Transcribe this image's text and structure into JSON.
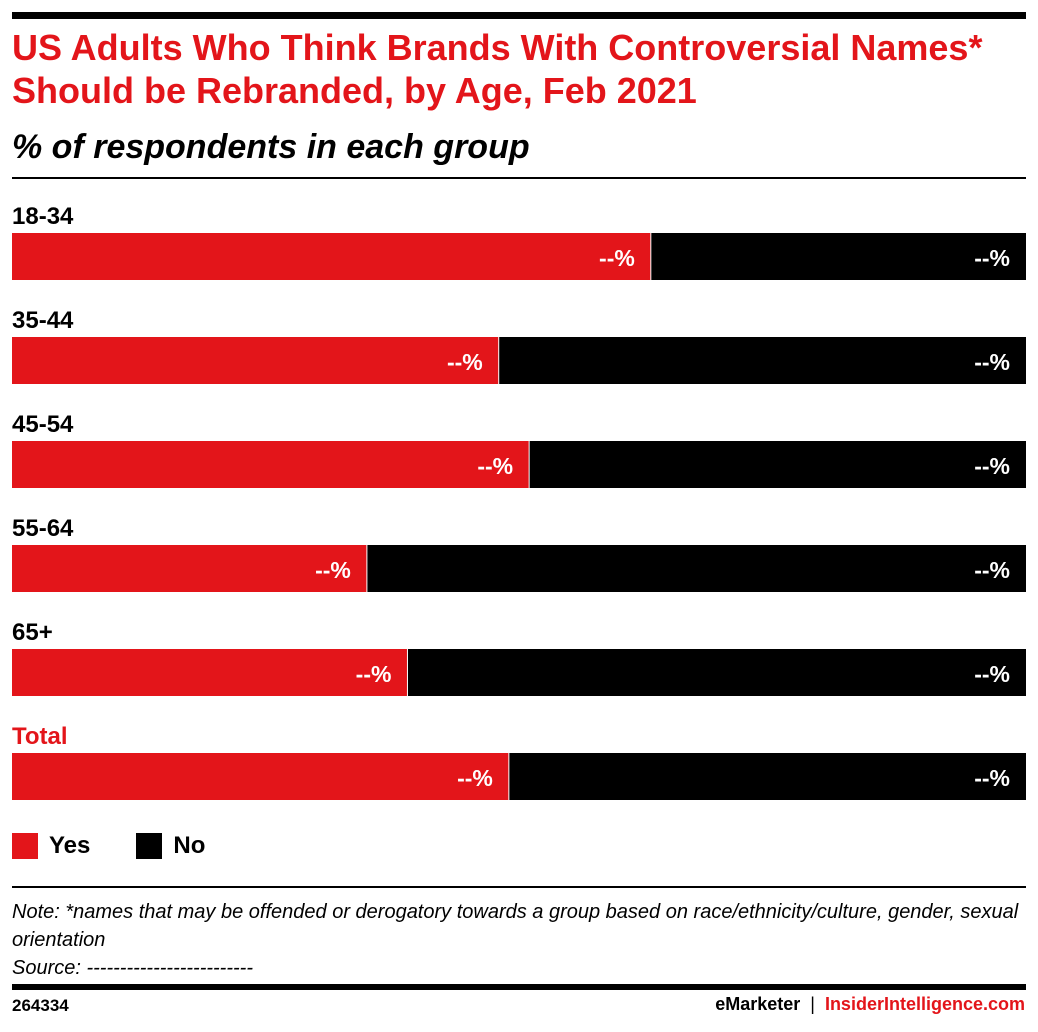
{
  "header": {
    "title": "US Adults Who Think Brands With Controversial Names* Should be Rebranded, by Age, Feb 2021",
    "subtitle": "% of respondents in each group"
  },
  "colors": {
    "yes": "#e3151a",
    "no": "#000000",
    "total_label": "#e3151a"
  },
  "chart_data": {
    "type": "bar",
    "orientation": "horizontal",
    "stacked": true,
    "normalized": true,
    "xlim": [
      0,
      100
    ],
    "categories": [
      "18-34",
      "35-44",
      "45-54",
      "55-64",
      "65+",
      "Total"
    ],
    "series": [
      {
        "name": "Yes",
        "values": [
          63,
          48,
          51,
          35,
          39,
          49
        ],
        "labels": [
          "--%",
          "--%",
          "--%",
          "--%",
          "--%",
          "--%"
        ]
      },
      {
        "name": "No",
        "values": [
          37,
          52,
          49,
          65,
          61,
          51
        ],
        "labels": [
          "--%",
          "--%",
          "--%",
          "--%",
          "--%",
          "--%"
        ]
      }
    ],
    "legend_position": "bottom-left"
  },
  "legend": {
    "items": [
      "Yes",
      "No"
    ]
  },
  "notes": {
    "note": "Note: *names that may be offended or derogatory towards a group based on race/ethnicity/culture, gender, sexual orientation",
    "source": "Source: -------------------------"
  },
  "footer": {
    "chart_id": "264334",
    "brand_left": "eMarketer",
    "separator": "|",
    "brand_right": "InsiderIntelligence.com"
  }
}
